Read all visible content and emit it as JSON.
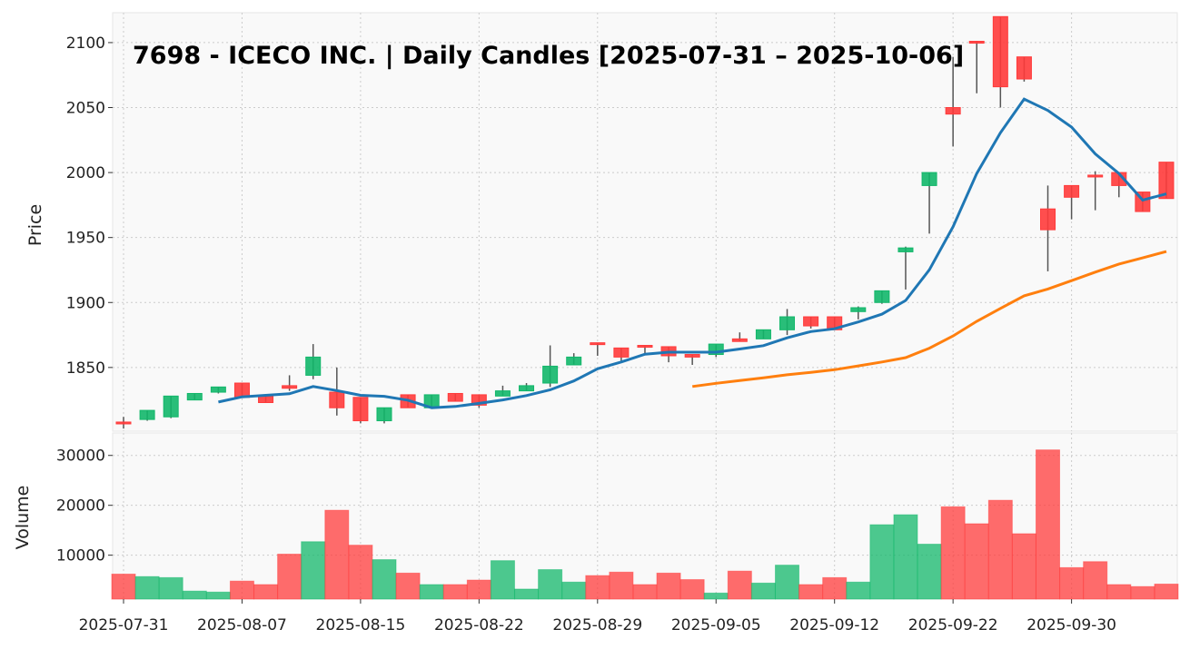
{
  "chart_data": {
    "type": "candlestick",
    "title": "7698 - ICECO INC. | Daily Candles [2025-07-31 – 2025-10-06]",
    "price_axis": {
      "label": "Price",
      "ylim": [
        1801,
        2123
      ],
      "ticks": [
        1850,
        1900,
        1950,
        2000,
        2050,
        2100
      ]
    },
    "volume_axis": {
      "label": "Volume",
      "ylim": [
        1200,
        34500
      ],
      "ticks": [
        10000,
        20000,
        30000
      ]
    },
    "x_tick_labels": [
      {
        "index": 0,
        "label": "2025-07-31"
      },
      {
        "index": 5,
        "label": "2025-08-07"
      },
      {
        "index": 10,
        "label": "2025-08-15"
      },
      {
        "index": 15,
        "label": "2025-08-22"
      },
      {
        "index": 20,
        "label": "2025-08-29"
      },
      {
        "index": 25,
        "label": "2025-09-05"
      },
      {
        "index": 30,
        "label": "2025-09-12"
      },
      {
        "index": 35,
        "label": "2025-09-22"
      },
      {
        "index": 40,
        "label": "2025-09-30"
      }
    ],
    "moving_averages": [
      {
        "window": 5,
        "color": "#1f77b4"
      },
      {
        "window": 25,
        "color": "#ff7f0e"
      }
    ],
    "colors": {
      "up": "#12b76a",
      "down": "#ff3b3b",
      "wick": "#555555",
      "grid": "#cccccc",
      "panel": "#f9f9f9"
    },
    "dates": [
      "2025-07-31",
      "2025-08-01",
      "2025-08-04",
      "2025-08-05",
      "2025-08-06",
      "2025-08-07",
      "2025-08-08",
      "2025-08-12",
      "2025-08-13",
      "2025-08-14",
      "2025-08-15",
      "2025-08-18",
      "2025-08-19",
      "2025-08-20",
      "2025-08-21",
      "2025-08-22",
      "2025-08-25",
      "2025-08-26",
      "2025-08-27",
      "2025-08-28",
      "2025-08-29",
      "2025-09-01",
      "2025-09-02",
      "2025-09-03",
      "2025-09-04",
      "2025-09-05",
      "2025-09-08",
      "2025-09-09",
      "2025-09-10",
      "2025-09-11",
      "2025-09-12",
      "2025-09-16",
      "2025-09-17",
      "2025-09-18",
      "2025-09-19",
      "2025-09-22",
      "2025-09-24",
      "2025-09-25",
      "2025-09-26",
      "2025-09-29",
      "2025-09-30",
      "2025-10-01",
      "2025-10-02",
      "2025-10-03",
      "2025-10-06"
    ],
    "open": [
      1808,
      1810,
      1812,
      1825,
      1831,
      1838,
      1828,
      1836,
      1844,
      1831,
      1827,
      1809,
      1829,
      1819,
      1830,
      1829,
      1828,
      1832,
      1838,
      1852,
      1869,
      1865,
      1867,
      1866,
      1860,
      1860,
      1872,
      1872,
      1879,
      1889,
      1889,
      1893,
      1900,
      1939,
      1990,
      2050,
      2101,
      2120,
      2089,
      1972,
      1990,
      1998,
      2000,
      1985,
      2008
    ],
    "high": [
      1812,
      1817,
      1828,
      1830,
      1835,
      1838,
      1828,
      1844,
      1868,
      1850,
      1827,
      1819,
      1829,
      1829,
      1830,
      1829,
      1836,
      1838,
      1867,
      1861,
      1869,
      1865,
      1867,
      1866,
      1860,
      1868,
      1877,
      1879,
      1895,
      1889,
      1889,
      1897,
      1909,
      1943,
      2000,
      2089,
      2101,
      2120,
      2089,
      1990,
      1990,
      2001,
      2000,
      1985,
      2008
    ],
    "low": [
      1803,
      1809,
      1811,
      1825,
      1830,
      1827,
      1823,
      1832,
      1841,
      1813,
      1807,
      1807,
      1819,
      1819,
      1824,
      1819,
      1828,
      1832,
      1835,
      1852,
      1859,
      1855,
      1860,
      1854,
      1852,
      1858,
      1870,
      1872,
      1875,
      1880,
      1879,
      1887,
      1899,
      1910,
      1953,
      2020,
      2061,
      2050,
      2070,
      1924,
      1964,
      1971,
      1981,
      1970,
      1980
    ],
    "close": [
      1807,
      1817,
      1828,
      1830,
      1835,
      1827,
      1823,
      1834,
      1858,
      1819,
      1809,
      1819,
      1819,
      1829,
      1824,
      1821,
      1832,
      1836,
      1851,
      1858,
      1868,
      1858,
      1866,
      1859,
      1858,
      1868,
      1870,
      1879,
      1889,
      1882,
      1879,
      1896,
      1909,
      1942,
      2000,
      2045,
      2100,
      2066,
      2072,
      1956,
      1981,
      1997,
      1990,
      1970,
      1980
    ],
    "volume": [
      6200,
      5700,
      5500,
      2800,
      2600,
      4800,
      4100,
      10200,
      12700,
      19000,
      12000,
      9100,
      6400,
      4100,
      4100,
      5000,
      8900,
      3200,
      7100,
      4600,
      5900,
      6600,
      4100,
      6400,
      5100,
      2400,
      6800,
      4400,
      8000,
      4100,
      5500,
      4600,
      16100,
      18100,
      12200,
      19700,
      16300,
      21000,
      14300,
      31100,
      7500,
      8700,
      4100,
      3700,
      4200
    ]
  }
}
